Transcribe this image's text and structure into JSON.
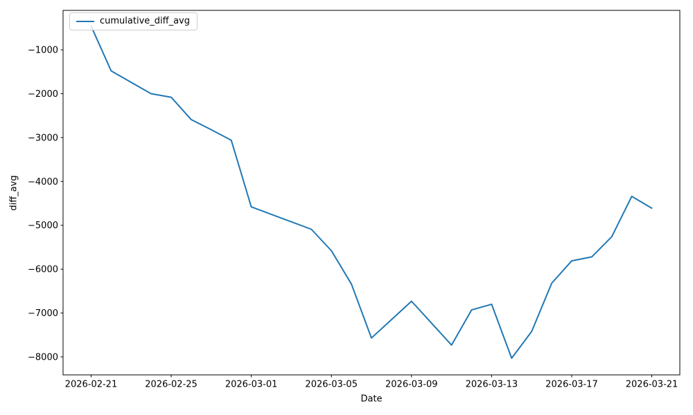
{
  "figure": {
    "background_color": "#ffffff",
    "frame_color": "#000000",
    "text_color": "#000000"
  },
  "chart_data": {
    "type": "line",
    "title": "",
    "xlabel": "Date",
    "ylabel": "diff_avg",
    "legend_label": "cumulative_diff_avg",
    "legend_position": "upper left",
    "line_color": "#1f77b4",
    "grid": false,
    "x": [
      "2026-02-21",
      "2026-02-22",
      "2026-02-23",
      "2026-02-24",
      "2026-02-25",
      "2026-02-26",
      "2026-02-27",
      "2026-02-28",
      "2026-03-01",
      "2026-03-02",
      "2026-03-03",
      "2026-03-04",
      "2026-03-05",
      "2026-03-06",
      "2026-03-07",
      "2026-03-08",
      "2026-03-09",
      "2026-03-10",
      "2026-03-11",
      "2026-03-12",
      "2026-03-13",
      "2026-03-14",
      "2026-03-15",
      "2026-03-16",
      "2026-03-17",
      "2026-03-18",
      "2026-03-19",
      "2026-03-20",
      "2026-03-21"
    ],
    "y": [
      -460,
      -1480,
      -1740,
      -2000,
      -2080,
      -2590,
      -2820,
      -3060,
      -4580,
      -4750,
      -4920,
      -5090,
      -5580,
      -6340,
      -7570,
      -7150,
      -6730,
      -7230,
      -7730,
      -6930,
      -6800,
      -8030,
      -7420,
      -6320,
      -5810,
      -5720,
      -5260,
      -4340,
      -4610
    ],
    "x_ticks": [
      {
        "day": 0,
        "label": "2026-02-21"
      },
      {
        "day": 4,
        "label": "2026-02-25"
      },
      {
        "day": 8,
        "label": "2026-03-01"
      },
      {
        "day": 12,
        "label": "2026-03-05"
      },
      {
        "day": 16,
        "label": "2026-03-09"
      },
      {
        "day": 20,
        "label": "2026-03-13"
      },
      {
        "day": 24,
        "label": "2026-03-17"
      },
      {
        "day": 28,
        "label": "2026-03-21"
      }
    ],
    "y_ticks": [
      {
        "value": -1000,
        "label": "−1000"
      },
      {
        "value": -2000,
        "label": "−2000"
      },
      {
        "value": -3000,
        "label": "−3000"
      },
      {
        "value": -4000,
        "label": "−4000"
      },
      {
        "value": -5000,
        "label": "−5000"
      },
      {
        "value": -6000,
        "label": "−6000"
      },
      {
        "value": -7000,
        "label": "−7000"
      },
      {
        "value": -8000,
        "label": "−8000"
      }
    ],
    "xlim_days": [
      -1.4,
      29.4
    ],
    "ylim": [
      -8410,
      -100
    ]
  }
}
